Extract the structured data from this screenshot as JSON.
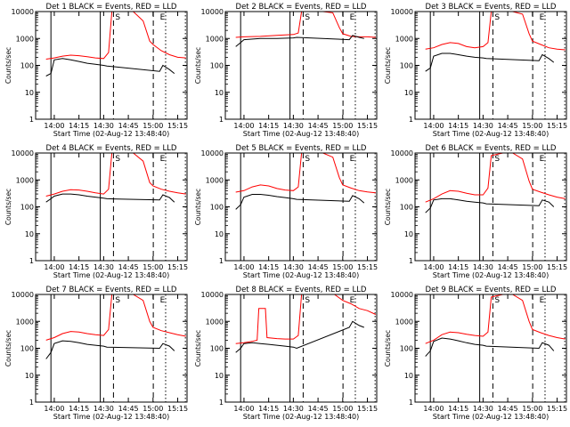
{
  "chart_data": [
    {
      "type": "line",
      "title": "Det 1 BLACK = Events, RED = LLD",
      "xlabel": "Start Time (02-Aug-12 13:48:40)",
      "ylabel": "Counts/sec",
      "yscale": "log",
      "ylim": [
        1,
        10000
      ],
      "yticks": [
        "1",
        "10",
        "100",
        "1000",
        "10000"
      ],
      "xticks": [
        "14:00",
        "14:15",
        "14:30",
        "14:45",
        "15:00",
        "15:15"
      ],
      "markers": [
        "S",
        "E"
      ],
      "series": [
        {
          "color": "#ff0000",
          "x": [
            "13:55",
            "14:00",
            "14:05",
            "14:10",
            "14:15",
            "14:20",
            "14:25",
            "14:30",
            "14:33",
            "14:35",
            "14:42",
            "14:48",
            "14:54",
            "14:58",
            "15:00",
            "15:05",
            "15:10",
            "15:15",
            "15:20"
          ],
          "values": [
            170,
            190,
            220,
            240,
            230,
            210,
            190,
            180,
            300,
            10000,
            10000,
            10000,
            4500,
            800,
            600,
            350,
            250,
            200,
            190
          ]
        },
        {
          "color": "#000000",
          "x": [
            "13:55",
            "13:58",
            "14:00",
            "14:05",
            "14:10",
            "14:15",
            "14:20",
            "14:25",
            "14:30",
            "14:32",
            "15:04",
            "15:06",
            "15:10",
            "15:13"
          ],
          "values": [
            40,
            50,
            160,
            180,
            160,
            140,
            120,
            110,
            100,
            95,
            60,
            100,
            70,
            50
          ]
        }
      ]
    },
    {
      "type": "line",
      "title": "Det 2 BLACK = Events, RED = LLD",
      "xlabel": "Start Time (02-Aug-12 13:48:40)",
      "ylabel": "Counts/sec",
      "yscale": "log",
      "ylim": [
        1,
        10000
      ],
      "yticks": [
        "1",
        "10",
        "100",
        "1000",
        "10000"
      ],
      "xticks": [
        "14:00",
        "14:15",
        "14:30",
        "14:45",
        "15:00",
        "15:15"
      ],
      "markers": [
        "S",
        "E"
      ],
      "series": [
        {
          "color": "#ff0000",
          "x": [
            "13:55",
            "14:00",
            "14:10",
            "14:20",
            "14:30",
            "14:33",
            "14:35",
            "14:42",
            "14:48",
            "14:54",
            "14:58",
            "15:00",
            "15:05",
            "15:10",
            "15:15",
            "15:20"
          ],
          "values": [
            1100,
            1150,
            1200,
            1300,
            1400,
            1600,
            10000,
            10000,
            10000,
            9000,
            2500,
            1500,
            1200,
            1150,
            1150,
            1100
          ]
        },
        {
          "color": "#000000",
          "x": [
            "13:55",
            "13:58",
            "14:00",
            "14:10",
            "14:20",
            "14:30",
            "14:32",
            "15:04",
            "15:06",
            "15:10",
            "15:13"
          ],
          "values": [
            500,
            700,
            900,
            1000,
            1000,
            1050,
            1100,
            900,
            1300,
            1100,
            1000
          ]
        }
      ]
    },
    {
      "type": "line",
      "title": "Det 3 BLACK = Events, RED = LLD",
      "xlabel": "Start Time (02-Aug-12 13:48:40)",
      "ylabel": "Counts/sec",
      "yscale": "log",
      "ylim": [
        1,
        10000
      ],
      "yticks": [
        "1",
        "10",
        "100",
        "1000",
        "10000"
      ],
      "xticks": [
        "14:00",
        "14:15",
        "14:30",
        "14:45",
        "15:00",
        "15:15"
      ],
      "markers": [
        "S",
        "E"
      ],
      "series": [
        {
          "color": "#ff0000",
          "x": [
            "13:55",
            "14:00",
            "14:05",
            "14:10",
            "14:15",
            "14:20",
            "14:25",
            "14:30",
            "14:33",
            "14:35",
            "14:42",
            "14:48",
            "14:54",
            "14:58",
            "15:00",
            "15:05",
            "15:10",
            "15:15",
            "15:20"
          ],
          "values": [
            400,
            450,
            600,
            700,
            650,
            500,
            450,
            500,
            700,
            10000,
            10000,
            10000,
            8000,
            1500,
            800,
            600,
            450,
            400,
            380
          ]
        },
        {
          "color": "#000000",
          "x": [
            "13:55",
            "13:58",
            "14:00",
            "14:05",
            "14:10",
            "14:15",
            "14:20",
            "14:25",
            "14:30",
            "14:32",
            "15:04",
            "15:06",
            "15:10",
            "15:13"
          ],
          "values": [
            60,
            80,
            220,
            280,
            280,
            250,
            220,
            200,
            190,
            180,
            150,
            250,
            180,
            130
          ]
        }
      ]
    },
    {
      "type": "line",
      "title": "Det 4 BLACK = Events, RED = LLD",
      "xlabel": "Start Time (02-Aug-12 13:48:40)",
      "ylabel": "Counts/sec",
      "yscale": "log",
      "ylim": [
        1,
        10000
      ],
      "yticks": [
        "1",
        "10",
        "100",
        "1000",
        "10000"
      ],
      "xticks": [
        "14:00",
        "14:15",
        "14:30",
        "14:45",
        "15:00",
        "15:15"
      ],
      "markers": [
        "S",
        "E"
      ],
      "series": [
        {
          "color": "#ff0000",
          "x": [
            "13:55",
            "14:00",
            "14:05",
            "14:10",
            "14:15",
            "14:20",
            "14:25",
            "14:30",
            "14:33",
            "14:35",
            "14:42",
            "14:48",
            "14:54",
            "14:58",
            "15:00",
            "15:05",
            "15:10",
            "15:15",
            "15:20"
          ],
          "values": [
            250,
            300,
            380,
            430,
            420,
            380,
            330,
            300,
            450,
            10000,
            10000,
            10000,
            5000,
            800,
            600,
            450,
            380,
            330,
            300
          ]
        },
        {
          "color": "#000000",
          "x": [
            "13:55",
            "13:58",
            "14:00",
            "14:05",
            "14:10",
            "14:15",
            "14:20",
            "14:25",
            "14:30",
            "14:32",
            "15:04",
            "15:06",
            "15:10",
            "15:13"
          ],
          "values": [
            150,
            200,
            250,
            300,
            300,
            280,
            250,
            230,
            210,
            200,
            180,
            280,
            220,
            150
          ]
        }
      ]
    },
    {
      "type": "line",
      "title": "Det 5 BLACK = Events, RED = LLD",
      "xlabel": "Start Time (02-Aug-12 13:48:40)",
      "ylabel": "Counts/sec",
      "yscale": "log",
      "ylim": [
        1,
        10000
      ],
      "yticks": [
        "1",
        "10",
        "100",
        "1000",
        "10000"
      ],
      "xticks": [
        "14:00",
        "14:15",
        "14:30",
        "14:45",
        "15:00",
        "15:15"
      ],
      "markers": [
        "S",
        "E"
      ],
      "series": [
        {
          "color": "#ff0000",
          "x": [
            "13:55",
            "14:00",
            "14:05",
            "14:10",
            "14:15",
            "14:20",
            "14:25",
            "14:30",
            "14:33",
            "14:35",
            "14:42",
            "14:48",
            "14:54",
            "14:58",
            "15:00",
            "15:05",
            "15:10",
            "15:15",
            "15:20"
          ],
          "values": [
            350,
            400,
            550,
            650,
            600,
            480,
            420,
            400,
            550,
            10000,
            10000,
            10000,
            7000,
            1200,
            650,
            500,
            400,
            360,
            330
          ]
        },
        {
          "color": "#000000",
          "x": [
            "13:55",
            "13:58",
            "14:00",
            "14:05",
            "14:10",
            "14:15",
            "14:20",
            "14:25",
            "14:30",
            "14:32",
            "15:04",
            "15:06",
            "15:10",
            "15:13"
          ],
          "values": [
            80,
            120,
            230,
            290,
            290,
            270,
            240,
            220,
            200,
            190,
            160,
            260,
            200,
            140
          ]
        }
      ]
    },
    {
      "type": "line",
      "title": "Det 6 BLACK = Events, RED = LLD",
      "xlabel": "Start Time (02-Aug-12 13:48:40)",
      "ylabel": "Counts/sec",
      "yscale": "log",
      "ylim": [
        1,
        10000
      ],
      "yticks": [
        "1",
        "10",
        "100",
        "1000",
        "10000"
      ],
      "xticks": [
        "14:00",
        "14:15",
        "14:30",
        "14:45",
        "15:00",
        "15:15"
      ],
      "markers": [
        "S",
        "E"
      ],
      "series": [
        {
          "color": "#ff0000",
          "x": [
            "13:55",
            "14:00",
            "14:05",
            "14:10",
            "14:15",
            "14:20",
            "14:25",
            "14:30",
            "14:33",
            "14:35",
            "14:42",
            "14:48",
            "14:54",
            "14:58",
            "15:00",
            "15:05",
            "15:10",
            "15:15",
            "15:20"
          ],
          "values": [
            150,
            200,
            300,
            400,
            380,
            320,
            280,
            280,
            500,
            8000,
            10000,
            10000,
            6000,
            900,
            450,
            350,
            280,
            230,
            200
          ]
        },
        {
          "color": "#000000",
          "x": [
            "13:55",
            "13:58",
            "14:00",
            "14:05",
            "14:10",
            "14:15",
            "14:20",
            "14:25",
            "14:30",
            "14:32",
            "15:04",
            "15:06",
            "15:10",
            "15:13"
          ],
          "values": [
            60,
            90,
            180,
            200,
            200,
            180,
            160,
            150,
            140,
            130,
            110,
            180,
            150,
            100
          ]
        }
      ]
    },
    {
      "type": "line",
      "title": "Det 7 BLACK = Events, RED = LLD",
      "xlabel": "Start Time (02-Aug-12 13:48:40)",
      "ylabel": "Counts/sec",
      "yscale": "log",
      "ylim": [
        1,
        10000
      ],
      "yticks": [
        "1",
        "10",
        "100",
        "1000",
        "10000"
      ],
      "xticks": [
        "14:00",
        "14:15",
        "14:30",
        "14:45",
        "15:00",
        "15:15"
      ],
      "markers": [
        "S",
        "E"
      ],
      "series": [
        {
          "color": "#ff0000",
          "x": [
            "13:55",
            "14:00",
            "14:05",
            "14:10",
            "14:15",
            "14:20",
            "14:25",
            "14:30",
            "14:33",
            "14:35",
            "14:42",
            "14:48",
            "14:54",
            "14:58",
            "15:00",
            "15:05",
            "15:10",
            "15:15",
            "15:20"
          ],
          "values": [
            200,
            250,
            350,
            420,
            400,
            350,
            320,
            300,
            500,
            10000,
            10000,
            10000,
            6000,
            1000,
            600,
            450,
            380,
            320,
            280
          ]
        },
        {
          "color": "#000000",
          "x": [
            "13:55",
            "13:58",
            "14:00",
            "14:05",
            "14:10",
            "14:15",
            "14:20",
            "14:25",
            "14:30",
            "14:32",
            "15:04",
            "15:06",
            "15:10",
            "15:13"
          ],
          "values": [
            40,
            70,
            150,
            190,
            180,
            160,
            140,
            130,
            120,
            110,
            100,
            150,
            120,
            80
          ]
        }
      ]
    },
    {
      "type": "line",
      "title": "Det 8 BLACK = Events, RED = LLD",
      "xlabel": "Start Time (02-Aug-12 13:48:40)",
      "ylabel": "Counts/sec",
      "yscale": "log",
      "ylim": [
        1,
        10000
      ],
      "yticks": [
        "1",
        "10",
        "100",
        "1000",
        "10000"
      ],
      "xticks": [
        "14:00",
        "14:15",
        "14:30",
        "14:45",
        "15:00",
        "15:15"
      ],
      "markers": [
        "S",
        "E"
      ],
      "series": [
        {
          "color": "#ff0000",
          "x": [
            "13:55",
            "14:00",
            "14:05",
            "14:08",
            "14:09",
            "14:13",
            "14:14",
            "14:20",
            "14:25",
            "14:30",
            "14:33",
            "14:35",
            "14:48",
            "14:55",
            "15:00",
            "15:05",
            "15:10",
            "15:15",
            "15:20"
          ],
          "values": [
            150,
            160,
            180,
            200,
            3000,
            3000,
            250,
            230,
            220,
            220,
            300,
            10000,
            10000,
            10000,
            6000,
            4500,
            3000,
            2500,
            1800
          ]
        },
        {
          "color": "#000000",
          "x": [
            "13:55",
            "13:58",
            "14:00",
            "14:05",
            "14:10",
            "14:15",
            "14:20",
            "14:25",
            "14:30",
            "14:32",
            "15:04",
            "15:06",
            "15:10",
            "15:13"
          ],
          "values": [
            70,
            100,
            150,
            160,
            150,
            140,
            130,
            120,
            110,
            100,
            600,
            1000,
            700,
            600
          ]
        }
      ]
    },
    {
      "type": "line",
      "title": "Det 9 BLACK = Events, RED = LLD",
      "xlabel": "Start Time (02-Aug-12 13:48:40)",
      "ylabel": "Counts/sec",
      "yscale": "log",
      "ylim": [
        1,
        10000
      ],
      "yticks": [
        "1",
        "10",
        "100",
        "1000",
        "10000"
      ],
      "xticks": [
        "14:00",
        "14:15",
        "14:30",
        "14:45",
        "15:00",
        "15:15"
      ],
      "markers": [
        "S",
        "E"
      ],
      "series": [
        {
          "color": "#ff0000",
          "x": [
            "13:55",
            "14:00",
            "14:05",
            "14:10",
            "14:15",
            "14:20",
            "14:25",
            "14:30",
            "14:33",
            "14:35",
            "14:42",
            "14:48",
            "14:54",
            "14:58",
            "15:00",
            "15:05",
            "15:10",
            "15:15",
            "15:20"
          ],
          "values": [
            150,
            200,
            320,
            400,
            380,
            330,
            300,
            280,
            400,
            8000,
            10000,
            10000,
            6000,
            1000,
            500,
            380,
            300,
            250,
            220
          ]
        },
        {
          "color": "#000000",
          "x": [
            "13:55",
            "13:58",
            "14:00",
            "14:05",
            "14:10",
            "14:15",
            "14:20",
            "14:25",
            "14:30",
            "14:32",
            "15:04",
            "15:06",
            "15:10",
            "15:13"
          ],
          "values": [
            50,
            80,
            180,
            240,
            220,
            190,
            160,
            140,
            130,
            120,
            100,
            160,
            130,
            80
          ]
        }
      ]
    }
  ]
}
